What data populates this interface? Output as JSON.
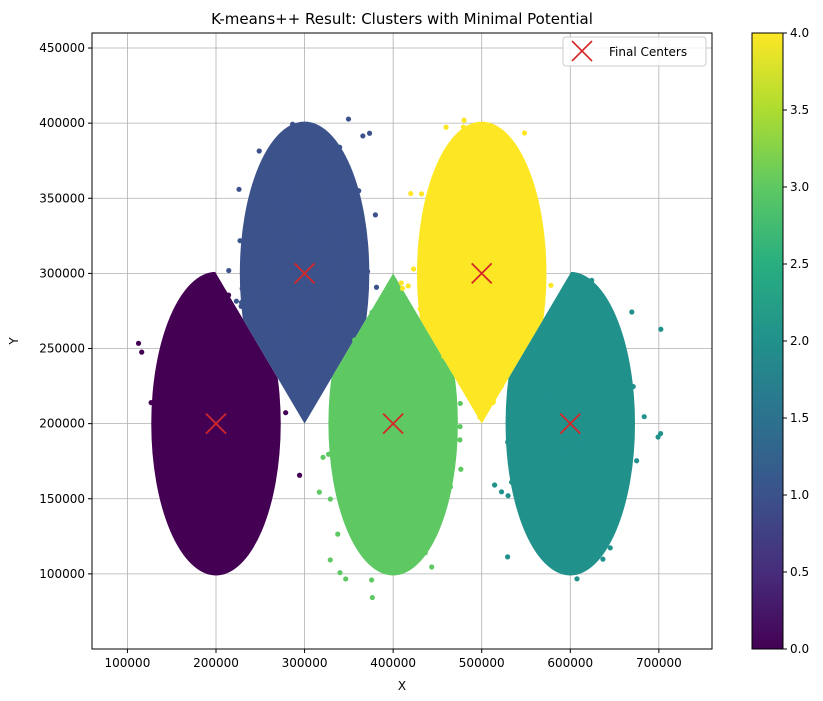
{
  "chart_data": {
    "type": "scatter",
    "title": "K-means++ Result: Clusters with Minimal Potential",
    "xlabel": "X",
    "ylabel": "Y",
    "xlim": [
      60000,
      760000
    ],
    "ylim": [
      50000,
      460000
    ],
    "xticks": [
      100000,
      200000,
      300000,
      400000,
      500000,
      600000,
      700000
    ],
    "yticks": [
      100000,
      150000,
      200000,
      250000,
      300000,
      350000,
      400000,
      450000
    ],
    "xtick_labels": [
      "100000",
      "200000",
      "300000",
      "400000",
      "500000",
      "600000",
      "700000"
    ],
    "ytick_labels": [
      "100000",
      "150000",
      "200000",
      "250000",
      "300000",
      "350000",
      "400000",
      "450000"
    ],
    "grid": true,
    "legend": {
      "placement": "top-right",
      "entries": [
        "Final Centers"
      ]
    },
    "marker_color": "#d62728",
    "colormap": "viridis",
    "colorbar": {
      "range": [
        0,
        4
      ],
      "ticks": [
        0,
        0.5,
        1,
        1.5,
        2,
        2.5,
        3,
        3.5,
        4
      ],
      "tick_labels": [
        "0.0",
        "0.5",
        "1.0",
        "1.5",
        "2.0",
        "2.5",
        "3.0",
        "3.5",
        "4.0"
      ]
    },
    "clusters": [
      {
        "label": 0,
        "color": "#440154",
        "center": [
          200000,
          200000
        ],
        "x_extent": [
          95000,
          310000
        ],
        "y_extent": [
          92000,
          300000
        ]
      },
      {
        "label": 1,
        "color": "#3b528b",
        "center": [
          300000,
          300000
        ],
        "x_extent": [
          205000,
          395000
        ],
        "y_extent": [
          205000,
          405000
        ]
      },
      {
        "label": 2,
        "color": "#21918c",
        "center": [
          600000,
          200000
        ],
        "x_extent": [
          485000,
          722000
        ],
        "y_extent": [
          72000,
          305000
        ]
      },
      {
        "label": 3,
        "color": "#5ec962",
        "center": [
          400000,
          200000
        ],
        "x_extent": [
          305000,
          485000
        ],
        "y_extent": [
          84000,
          295000
        ]
      },
      {
        "label": 4,
        "color": "#fde725",
        "center": [
          500000,
          300000
        ],
        "x_extent": [
          393000,
          590000
        ],
        "y_extent": [
          200000,
          440000
        ]
      }
    ],
    "centers": [
      {
        "x": 200000,
        "y": 200000
      },
      {
        "x": 300000,
        "y": 300000
      },
      {
        "x": 400000,
        "y": 200000
      },
      {
        "x": 500000,
        "y": 300000
      },
      {
        "x": 600000,
        "y": 200000
      }
    ]
  }
}
